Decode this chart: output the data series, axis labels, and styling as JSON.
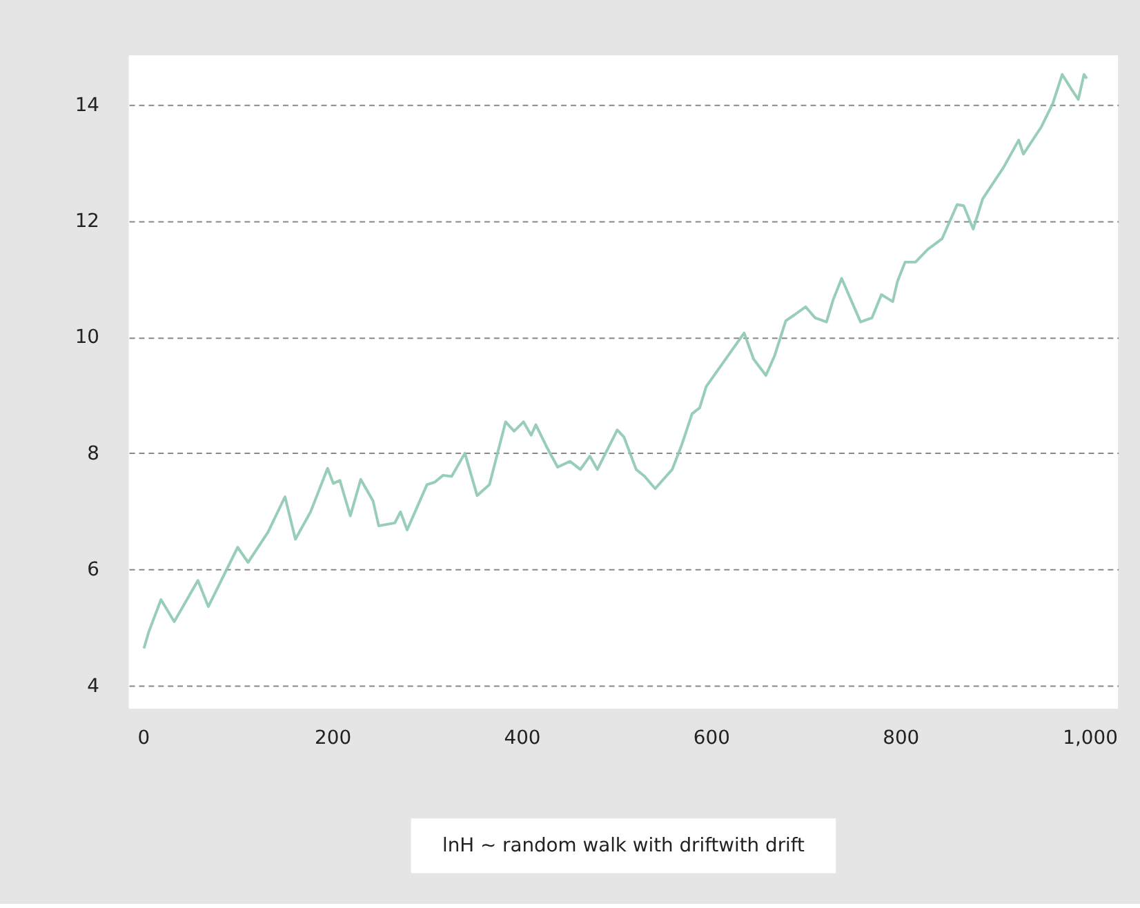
{
  "chart_data": {
    "type": "line",
    "x": [
      1,
      6,
      19,
      33,
      58,
      69,
      100,
      111,
      132,
      150,
      161,
      177,
      195,
      201,
      208,
      219,
      230,
      243,
      249,
      266,
      272,
      279,
      300,
      308,
      317,
      326,
      340,
      353,
      366,
      383,
      392,
      402,
      410,
      415,
      427,
      438,
      451,
      462,
      472,
      480,
      501,
      508,
      521,
      530,
      541,
      559,
      569,
      580,
      588,
      595,
      635,
      645,
      658,
      667,
      679,
      688,
      700,
      710,
      722,
      729,
      738,
      750,
      758,
      770,
      780,
      792,
      797,
      805,
      816,
      829,
      844,
      860,
      867,
      877,
      887,
      909,
      925,
      930,
      949,
      961,
      971,
      981,
      988,
      994,
      997
    ],
    "series": [
      {
        "color": "#8dc9b0",
        "values": [
          4.64,
          4.92,
          5.48,
          5.1,
          5.81,
          5.36,
          6.38,
          6.12,
          6.64,
          7.25,
          6.52,
          6.99,
          7.74,
          7.48,
          7.53,
          6.92,
          7.55,
          7.18,
          6.75,
          6.8,
          6.99,
          6.68,
          7.46,
          7.5,
          7.62,
          7.6,
          8.0,
          7.27,
          7.46,
          8.54,
          8.38,
          8.54,
          8.31,
          8.49,
          8.09,
          7.76,
          7.86,
          7.72,
          7.95,
          7.72,
          8.4,
          8.28,
          7.72,
          7.6,
          7.39,
          7.72,
          8.14,
          8.68,
          8.78,
          9.15,
          10.07,
          9.62,
          9.34,
          9.67,
          10.28,
          10.38,
          10.52,
          10.33,
          10.26,
          10.64,
          11.01,
          10.56,
          10.26,
          10.33,
          10.73,
          10.61,
          10.96,
          11.29,
          11.29,
          11.51,
          11.69,
          12.28,
          12.26,
          11.86,
          12.38,
          12.92,
          13.39,
          13.15,
          13.62,
          14.02,
          14.52,
          14.26,
          14.09,
          14.52,
          14.45
        ]
      }
    ],
    "xlim": [
      -15,
      1030
    ],
    "ylim": [
      3.6,
      14.85
    ],
    "xticks": [
      0,
      200,
      400,
      600,
      800,
      {
        "value": 1000,
        "label": "1,000"
      }
    ],
    "yticks": [
      4,
      6,
      8,
      10,
      12,
      14
    ],
    "grid": "y",
    "line_style": "solid",
    "marker": "none",
    "annotations": [
      "lnH ~ random walk with driftwith drift"
    ]
  }
}
